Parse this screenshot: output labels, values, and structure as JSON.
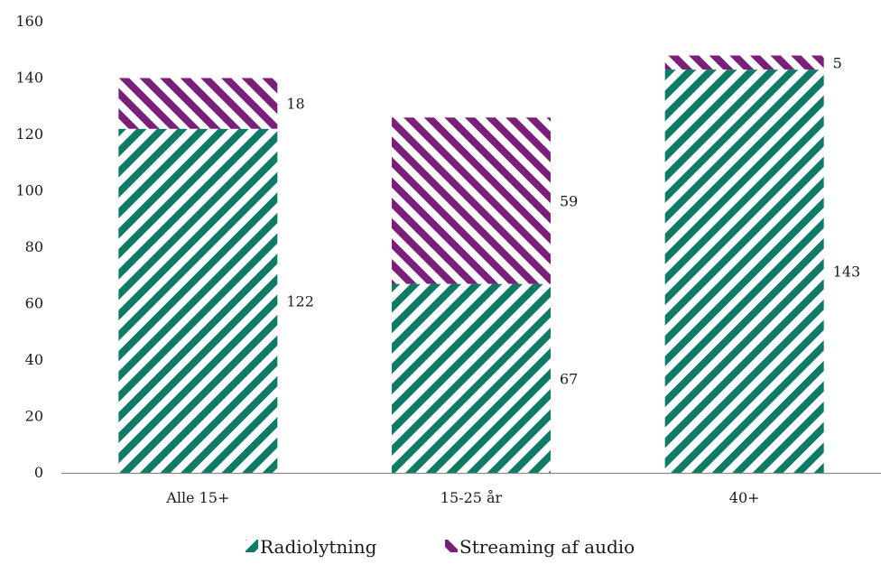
{
  "chart_data": {
    "type": "bar",
    "stacked": true,
    "categories": [
      "Alle 15+",
      "15-25 år",
      "40+"
    ],
    "series": [
      {
        "name": "Radiolytning",
        "values": [
          122,
          67,
          143
        ],
        "color": "#0f7a66",
        "pattern": "diagonal-stripes-forward"
      },
      {
        "name": "Streaming af audio",
        "values": [
          18,
          59,
          5
        ],
        "color": "#7a1f7a",
        "pattern": "diagonal-stripes-backward"
      }
    ],
    "title": "",
    "xlabel": "",
    "ylabel": "",
    "ylim": [
      0,
      160
    ],
    "yticks": [
      0,
      20,
      40,
      60,
      80,
      100,
      120,
      140,
      160
    ],
    "grid": false,
    "legend_position": "bottom"
  }
}
